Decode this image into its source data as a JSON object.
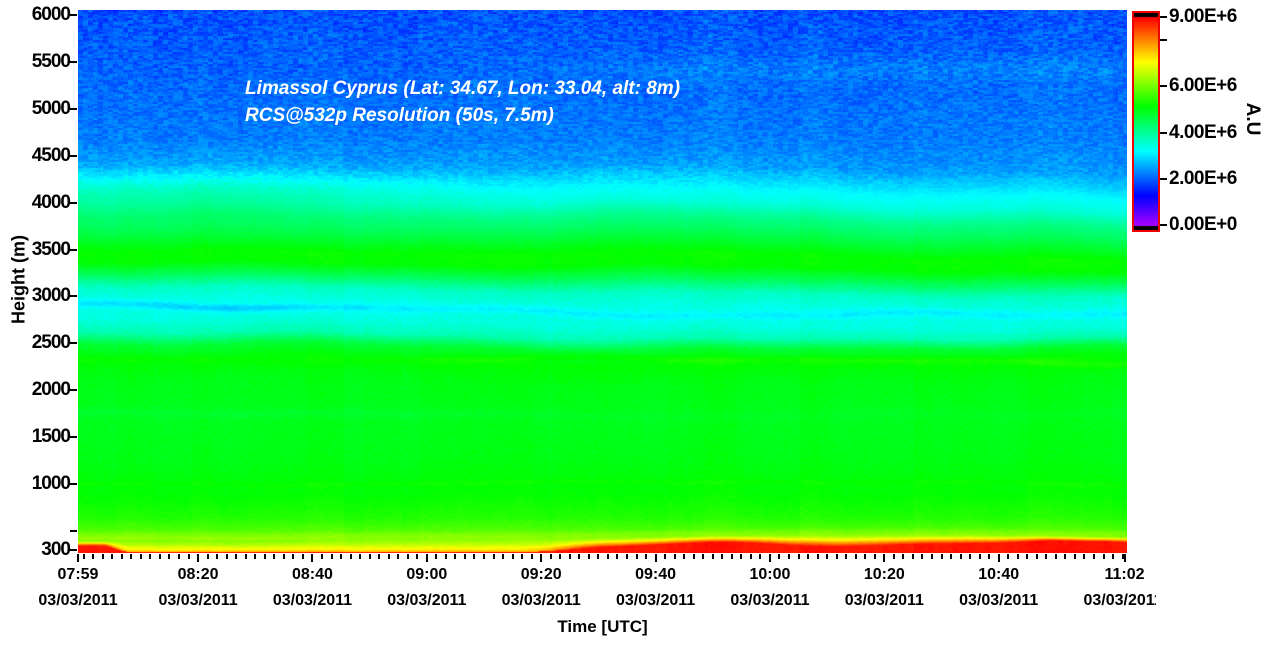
{
  "figure": {
    "background": "#ffffff",
    "text_color": "#000000",
    "title_color": "#ffffff",
    "colorbar_border_color": "#f10000"
  },
  "chart_data": {
    "type": "heatmap",
    "title": "Limassol Cyprus (Lat: 34.67, Lon: 33.04, alt: 8m)",
    "subtitle": "RCS@532p Resolution (50s, 7.5m)",
    "xlabel": "Time [UTC]",
    "ylabel": "Height (m)",
    "value_label": "A.U",
    "date": "03/03/2011",
    "x_start_time": "07:59",
    "x_end_time": "11:02",
    "x_ticks": [
      {
        "time": "07:59",
        "date": "03/03/2011"
      },
      {
        "time": "08:20",
        "date": "03/03/2011"
      },
      {
        "time": "08:40",
        "date": "03/03/2011"
      },
      {
        "time": "09:00",
        "date": "03/03/2011"
      },
      {
        "time": "09:20",
        "date": "03/03/2011"
      },
      {
        "time": "09:40",
        "date": "03/03/2011"
      },
      {
        "time": "10:00",
        "date": "03/03/2011"
      },
      {
        "time": "10:20",
        "date": "03/03/2011"
      },
      {
        "time": "10:40",
        "date": "03/03/2011"
      },
      {
        "time": "11:02",
        "date": "03/03/2011"
      }
    ],
    "y_ticks_labeled": [
      6000,
      5500,
      5000,
      4500,
      4000,
      3500,
      3000,
      2500,
      2000,
      1500,
      1000,
      300
    ],
    "y_ticks_unlabeled": [
      500
    ],
    "height_range_m": [
      300,
      6000
    ],
    "value_range_au": [
      0,
      9000000
    ],
    "colorbar_ticks": [
      {
        "value": 9000000,
        "label": "9.00E+6"
      },
      {
        "value": 8000000,
        "label": ""
      },
      {
        "value": 6000000,
        "label": "6.00E+6"
      },
      {
        "value": 4000000,
        "label": "4.00E+6"
      },
      {
        "value": 2000000,
        "label": "2.00E+6"
      },
      {
        "value": 0,
        "label": "0.00E+0"
      }
    ],
    "colormap": {
      "description": "rainbow, red=max violet=0",
      "hue_at_max_deg": 0,
      "hue_at_min_deg": 280
    },
    "profile_au_by_height_m": [
      [
        300,
        8850000
      ],
      [
        350,
        8000000
      ],
      [
        400,
        7000000
      ],
      [
        450,
        6200000
      ],
      [
        520,
        5750000
      ],
      [
        650,
        5400000
      ],
      [
        900,
        5150000
      ],
      [
        1300,
        5000000
      ],
      [
        1700,
        4950000
      ],
      [
        2100,
        5000000
      ],
      [
        2320,
        5150000
      ],
      [
        2480,
        4750000
      ],
      [
        2620,
        3800000
      ],
      [
        2780,
        3450000
      ],
      [
        2980,
        3400000
      ],
      [
        3120,
        3650000
      ],
      [
        3260,
        4450000
      ],
      [
        3400,
        5150000
      ],
      [
        3520,
        5200000
      ],
      [
        3650,
        4800000
      ],
      [
        3800,
        4350000
      ],
      [
        3900,
        4100000
      ],
      [
        4050,
        3500000
      ],
      [
        4200,
        3200000
      ],
      [
        4330,
        2850000
      ],
      [
        4450,
        2500000
      ],
      [
        4700,
        2250000
      ],
      [
        5200,
        2100000
      ],
      [
        6050,
        1900000
      ]
    ],
    "surface_layer": {
      "red_value_au": 8850000,
      "note": "near-ground layer red below ~350-430 m; orange wedge at 07:59, yellow-only 08:05-09:25, thick red band after ~09:30 with bumps near 10:05 and 10:55"
    }
  }
}
